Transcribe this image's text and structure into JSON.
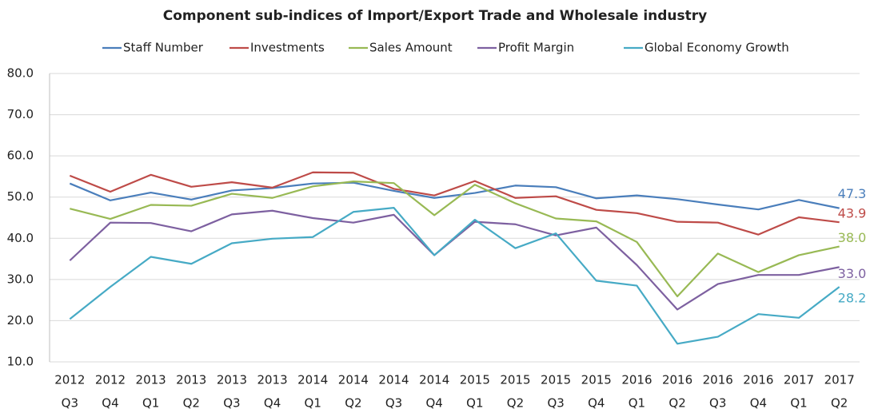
{
  "chart_data": {
    "type": "line",
    "title": "Component sub-indices of Import/Export Trade and Wholesale industry",
    "categories": [
      [
        "2012",
        "Q3"
      ],
      [
        "2012",
        "Q4"
      ],
      [
        "2013",
        "Q1"
      ],
      [
        "2013",
        "Q2"
      ],
      [
        "2013",
        "Q3"
      ],
      [
        "2013",
        "Q4"
      ],
      [
        "2014",
        "Q1"
      ],
      [
        "2014",
        "Q2"
      ],
      [
        "2014",
        "Q3"
      ],
      [
        "2014",
        "Q4"
      ],
      [
        "2015",
        "Q1"
      ],
      [
        "2015",
        "Q2"
      ],
      [
        "2015",
        "Q3"
      ],
      [
        "2015",
        "Q4"
      ],
      [
        "2016",
        "Q1"
      ],
      [
        "2016",
        "Q2"
      ],
      [
        "2016",
        "Q3"
      ],
      [
        "2016",
        "Q4"
      ],
      [
        "2017",
        "Q1"
      ],
      [
        "2017",
        "Q2"
      ]
    ],
    "series": [
      {
        "name": "Staff Number",
        "color": "#4a7ebb",
        "values": [
          53.3,
          49.2,
          51.1,
          49.4,
          51.6,
          52.2,
          53.3,
          53.5,
          51.5,
          49.8,
          51.0,
          52.8,
          52.4,
          49.7,
          50.4,
          49.5,
          48.2,
          47.0,
          49.3,
          47.3
        ],
        "value_labels": [
          null,
          null,
          null,
          null,
          null,
          null,
          null,
          null,
          null,
          null,
          null,
          null,
          null,
          null,
          null,
          null,
          null,
          null,
          null,
          "47.3"
        ]
      },
      {
        "name": "Investments",
        "color": "#be4b48",
        "values": [
          55.2,
          51.3,
          55.4,
          52.5,
          53.6,
          52.3,
          56.0,
          55.9,
          52.0,
          50.4,
          53.9,
          49.8,
          50.2,
          46.9,
          46.1,
          44.0,
          43.8,
          40.9,
          45.1,
          43.9
        ],
        "value_labels": [
          null,
          null,
          null,
          null,
          null,
          null,
          null,
          null,
          null,
          null,
          null,
          null,
          null,
          null,
          null,
          null,
          null,
          null,
          null,
          "43.9"
        ]
      },
      {
        "name": "Sales Amount",
        "color": "#98b954",
        "values": [
          47.2,
          44.7,
          48.1,
          47.9,
          50.8,
          49.8,
          52.6,
          53.8,
          53.4,
          45.6,
          53.0,
          48.5,
          44.8,
          44.1,
          39.1,
          25.9,
          36.3,
          31.8,
          35.9,
          38.0
        ],
        "value_labels": [
          null,
          null,
          null,
          null,
          null,
          null,
          null,
          null,
          null,
          null,
          null,
          null,
          null,
          null,
          null,
          null,
          null,
          null,
          null,
          "38.0"
        ]
      },
      {
        "name": "Profit Margin",
        "color": "#7d60a0",
        "values": [
          34.6,
          43.8,
          43.7,
          41.7,
          45.8,
          46.7,
          44.9,
          43.8,
          45.7,
          35.9,
          44.0,
          43.4,
          40.7,
          42.6,
          33.5,
          22.7,
          28.9,
          31.1,
          31.1,
          33.0
        ],
        "value_labels": [
          null,
          null,
          null,
          null,
          null,
          null,
          null,
          null,
          null,
          null,
          null,
          null,
          null,
          null,
          null,
          null,
          null,
          null,
          null,
          "33.0"
        ]
      },
      {
        "name": "Global Economy Growth",
        "color": "#46aac5",
        "values": [
          20.4,
          28.2,
          35.5,
          33.8,
          38.8,
          39.9,
          40.3,
          46.4,
          47.4,
          35.9,
          44.5,
          37.6,
          41.2,
          29.7,
          28.5,
          14.4,
          16.1,
          21.6,
          20.7,
          28.2
        ],
        "value_labels": [
          null,
          null,
          null,
          null,
          null,
          null,
          null,
          null,
          null,
          null,
          null,
          null,
          null,
          null,
          null,
          null,
          null,
          null,
          null,
          "28.2"
        ]
      }
    ],
    "ylim": [
      10,
      80
    ],
    "yticks": [
      {
        "value": 10,
        "label": "10.0"
      },
      {
        "value": 20,
        "label": "20.0"
      },
      {
        "value": 30,
        "label": "30.0"
      },
      {
        "value": 40,
        "label": "40.0"
      },
      {
        "value": 50,
        "label": "50.0"
      },
      {
        "value": 60,
        "label": "60.0"
      },
      {
        "value": 70,
        "label": "70.0"
      },
      {
        "value": 80,
        "label": "80.0"
      }
    ],
    "grid": true,
    "legend": "top"
  }
}
